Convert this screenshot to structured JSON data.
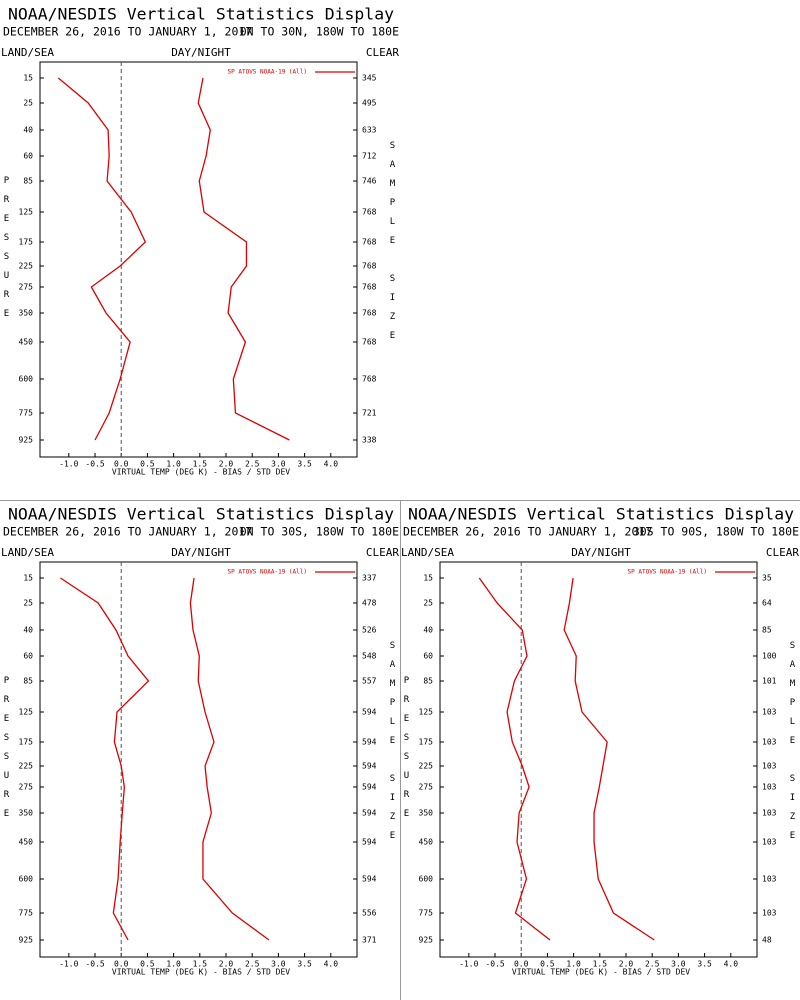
{
  "chart_data": [
    {
      "type": "line",
      "title": "NOAA/NESDIS Vertical Statistics Display",
      "subtitle": "DECEMBER 26, 2016 TO JANUARY 1, 2017",
      "region": "0N TO 30N, 180W TO 180E",
      "surface_label": "LAND/SEA",
      "time_label": "DAY/NIGHT",
      "sky_label": "CLEAR",
      "y_label": "PRESSURE",
      "y2_label": "SAMPLE SIZE",
      "x_label": "VIRTUAL TEMP (DEG K) - BIAS / STD DEV",
      "categories": [
        15,
        25,
        40,
        60,
        85,
        125,
        175,
        225,
        275,
        350,
        450,
        600,
        775,
        925
      ],
      "sample_sizes": [
        345,
        495,
        633,
        712,
        746,
        768,
        768,
        768,
        768,
        768,
        768,
        768,
        721,
        338
      ],
      "xlim": [
        -1.55,
        4.5
      ],
      "xticks": [
        {
          "value": -1,
          "label": "-1.0"
        },
        {
          "value": -0.5,
          "label": "-0.5"
        },
        {
          "value": 0,
          "label": "0.0"
        },
        0.5,
        {
          "value": 1,
          "label": "1.0"
        },
        1.5,
        {
          "value": 2,
          "label": "2.0"
        },
        2.5,
        {
          "value": 3,
          "label": "3.0"
        },
        3.5,
        {
          "value": 4,
          "label": "4.0"
        }
      ],
      "zero_line": 0,
      "series": [
        {
          "name": "SP ATOVS NOAA-19 (All)",
          "color": "#dd0000",
          "values": [
            -1.2,
            -0.63,
            -0.25,
            -0.23,
            -0.27,
            0.19,
            0.46,
            -0.02,
            -0.57,
            -0.29,
            0.17,
            -0.02,
            -0.23,
            -0.5
          ]
        },
        {
          "color": "#dd0000",
          "values": [
            1.56,
            1.47,
            1.7,
            1.62,
            1.49,
            1.58,
            2.39,
            2.39,
            2.1,
            2.04,
            2.37,
            2.14,
            2.18,
            3.21
          ]
        }
      ]
    },
    {
      "type": "line",
      "title": "NOAA/NESDIS Vertical Statistics Display",
      "subtitle": "DECEMBER 26, 2016 TO JANUARY 1, 2017",
      "region": "0N TO 30S, 180W TO 180E",
      "surface_label": "LAND/SEA",
      "time_label": "DAY/NIGHT",
      "sky_label": "CLEAR",
      "y_label": "PRESSURE",
      "y2_label": "SAMPLE SIZE",
      "x_label": "VIRTUAL TEMP (DEG K) - BIAS / STD DEV",
      "categories": [
        15,
        25,
        40,
        60,
        85,
        125,
        175,
        225,
        275,
        350,
        450,
        600,
        775,
        925
      ],
      "sample_sizes": [
        337,
        478,
        526,
        548,
        557,
        594,
        594,
        594,
        594,
        594,
        594,
        594,
        556,
        371
      ],
      "xlim": [
        -1.55,
        4.5
      ],
      "xticks": [
        {
          "value": -1,
          "label": "-1.0"
        },
        {
          "value": -0.5,
          "label": "-0.5"
        },
        {
          "value": 0,
          "label": "0.0"
        },
        0.5,
        {
          "value": 1,
          "label": "1.0"
        },
        1.5,
        {
          "value": 2,
          "label": "2.0"
        },
        2.5,
        {
          "value": 3,
          "label": "3.0"
        },
        3.5,
        {
          "value": 4,
          "label": "4.0"
        }
      ],
      "zero_line": 0,
      "series": [
        {
          "name": "SP ATOVS NOAA-19 (All)",
          "color": "#dd0000",
          "values": [
            -1.16,
            -0.44,
            -0.1,
            0.13,
            0.52,
            -0.08,
            -0.13,
            0,
            0.06,
            0.02,
            -0.02,
            -0.06,
            -0.15,
            0.13
          ]
        },
        {
          "color": "#dd0000",
          "values": [
            1.39,
            1.32,
            1.37,
            1.49,
            1.47,
            1.6,
            1.77,
            1.6,
            1.64,
            1.72,
            1.56,
            1.56,
            2.12,
            2.82
          ]
        }
      ]
    },
    {
      "type": "line",
      "title": "NOAA/NESDIS Vertical Statistics Display",
      "subtitle": "DECEMBER 26, 2016 TO JANUARY 1, 2017",
      "region": "30S TO 90S, 180W TO 180E",
      "surface_label": "LAND/SEA",
      "time_label": "DAY/NIGHT",
      "sky_label": "CLEAR",
      "y_label": "PRESSURE",
      "y2_label": "SAMPLE SIZE",
      "x_label": "VIRTUAL TEMP (DEG K) - BIAS / STD DEV",
      "categories": [
        15,
        25,
        40,
        60,
        85,
        125,
        175,
        225,
        275,
        350,
        450,
        600,
        775,
        925
      ],
      "sample_sizes": [
        35,
        64,
        85,
        100,
        101,
        103,
        103,
        103,
        103,
        103,
        103,
        103,
        103,
        48
      ],
      "xlim": [
        -1.55,
        4.5
      ],
      "xticks": [
        {
          "value": -1,
          "label": "-1.0"
        },
        {
          "value": -0.5,
          "label": "-0.5"
        },
        {
          "value": 0,
          "label": "0.0"
        },
        0.5,
        {
          "value": 1,
          "label": "1.0"
        },
        1.5,
        {
          "value": 2,
          "label": "2.0"
        },
        2.5,
        {
          "value": 3,
          "label": "3.0"
        },
        3.5,
        {
          "value": 4,
          "label": "4.0"
        }
      ],
      "zero_line": 0,
      "series": [
        {
          "name": "SP ATOVS NOAA-19 (All)",
          "color": "#dd0000",
          "values": [
            -0.8,
            -0.46,
            0.02,
            0.11,
            -0.13,
            -0.27,
            -0.17,
            0.02,
            0.15,
            -0.04,
            -0.08,
            0.1,
            -0.11,
            0.55
          ]
        },
        {
          "color": "#dd0000",
          "values": [
            0.99,
            0.92,
            0.82,
            1.05,
            1.03,
            1.16,
            1.64,
            1.56,
            1.49,
            1.39,
            1.39,
            1.47,
            1.76,
            2.54
          ]
        }
      ]
    }
  ]
}
